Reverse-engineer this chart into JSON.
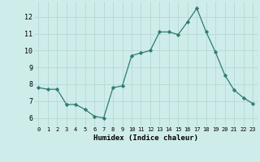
{
  "x": [
    0,
    1,
    2,
    3,
    4,
    5,
    6,
    7,
    8,
    9,
    10,
    11,
    12,
    13,
    14,
    15,
    16,
    17,
    18,
    19,
    20,
    21,
    22,
    23
  ],
  "y": [
    7.8,
    7.7,
    7.7,
    6.8,
    6.8,
    6.5,
    6.1,
    6.0,
    7.8,
    7.9,
    9.7,
    9.85,
    10.0,
    11.1,
    11.1,
    10.95,
    11.7,
    12.5,
    11.1,
    9.9,
    8.55,
    7.65,
    7.2,
    6.85
  ],
  "line_color": "#2e7d6e",
  "marker": "D",
  "marker_size": 2.2,
  "bg_color": "#ceecea",
  "grid_color": "#b8d8d4",
  "xlabel": "Humidex (Indice chaleur)",
  "ylabel_ticks": [
    6,
    7,
    8,
    9,
    10,
    11,
    12
  ],
  "xlim": [
    -0.5,
    23.5
  ],
  "ylim": [
    5.5,
    12.9
  ],
  "xticks": [
    0,
    1,
    2,
    3,
    4,
    5,
    6,
    7,
    8,
    9,
    10,
    11,
    12,
    13,
    14,
    15,
    16,
    17,
    18,
    19,
    20,
    21,
    22,
    23
  ]
}
